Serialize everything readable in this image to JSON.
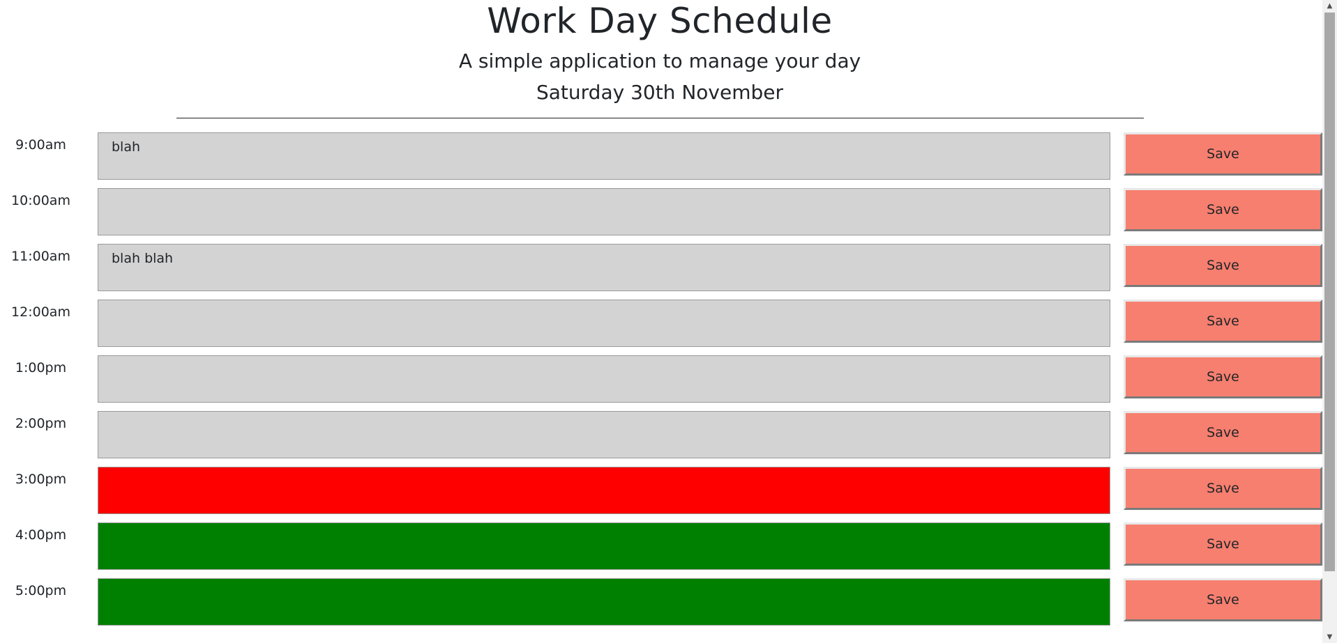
{
  "header": {
    "title": "Work Day Schedule",
    "subtitle": "A simple application to manage your day",
    "date": "Saturday 30th November"
  },
  "colors": {
    "past": "#d3d3d3",
    "present": "#ff0000",
    "future": "#008000",
    "save_button": "#f77f6f"
  },
  "time_blocks": [
    {
      "hour": "9:00am",
      "text": "blah",
      "state": "past",
      "save_label": "Save"
    },
    {
      "hour": "10:00am",
      "text": "",
      "state": "past",
      "save_label": "Save"
    },
    {
      "hour": "11:00am",
      "text": "blah blah",
      "state": "past",
      "save_label": "Save"
    },
    {
      "hour": "12:00am",
      "text": "",
      "state": "past",
      "save_label": "Save"
    },
    {
      "hour": "1:00pm",
      "text": "",
      "state": "past",
      "save_label": "Save"
    },
    {
      "hour": "2:00pm",
      "text": "",
      "state": "past",
      "save_label": "Save"
    },
    {
      "hour": "3:00pm",
      "text": "",
      "state": "present",
      "save_label": "Save"
    },
    {
      "hour": "4:00pm",
      "text": "",
      "state": "future",
      "save_label": "Save"
    },
    {
      "hour": "5:00pm",
      "text": "",
      "state": "future",
      "save_label": "Save"
    }
  ],
  "scrollbar": {
    "up_icon": "scroll-up-arrow",
    "down_icon": "scroll-down-arrow"
  }
}
